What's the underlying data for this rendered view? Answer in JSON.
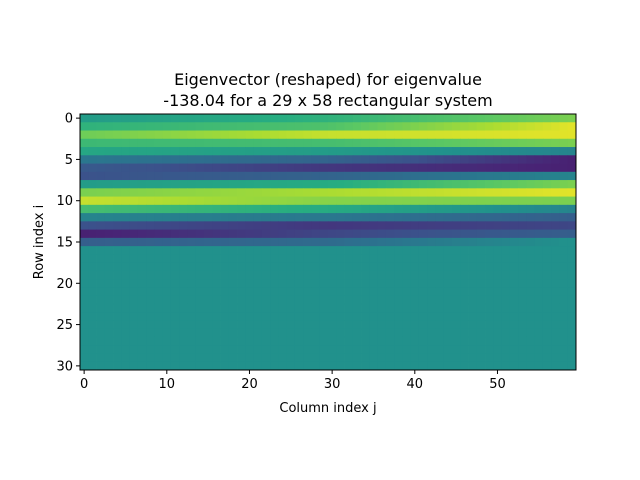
{
  "chart_data": {
    "type": "heatmap",
    "title_line1": "Eigenvector (reshaped) for eigenvalue",
    "title_line2": "-138.04 for a 29 x 58 rectangular system",
    "xlabel": "Column index j",
    "ylabel": "Row index i",
    "colormap": "viridis",
    "n_rows": 31,
    "n_cols": 60,
    "x_ticks": [
      0,
      10,
      20,
      30,
      40,
      50
    ],
    "y_ticks": [
      0,
      5,
      10,
      15,
      20,
      25,
      30
    ],
    "nonzero_rows": 16,
    "zero_level": 0.5,
    "row_profile_start": [
      0.55,
      0.65,
      0.78,
      0.68,
      0.6,
      0.4,
      0.28,
      0.25,
      0.55,
      0.8,
      0.92,
      0.7,
      0.45,
      0.25,
      0.12,
      0.3
    ],
    "row_profile_mid": [
      0.65,
      0.72,
      0.92,
      0.7,
      0.55,
      0.32,
      0.18,
      0.32,
      0.62,
      0.88,
      0.82,
      0.62,
      0.4,
      0.18,
      0.22,
      0.35
    ],
    "row_profile_end": [
      0.8,
      0.96,
      0.96,
      0.8,
      0.45,
      0.12,
      0.12,
      0.45,
      0.8,
      0.96,
      0.8,
      0.45,
      0.3,
      0.22,
      0.3,
      0.5
    ]
  }
}
